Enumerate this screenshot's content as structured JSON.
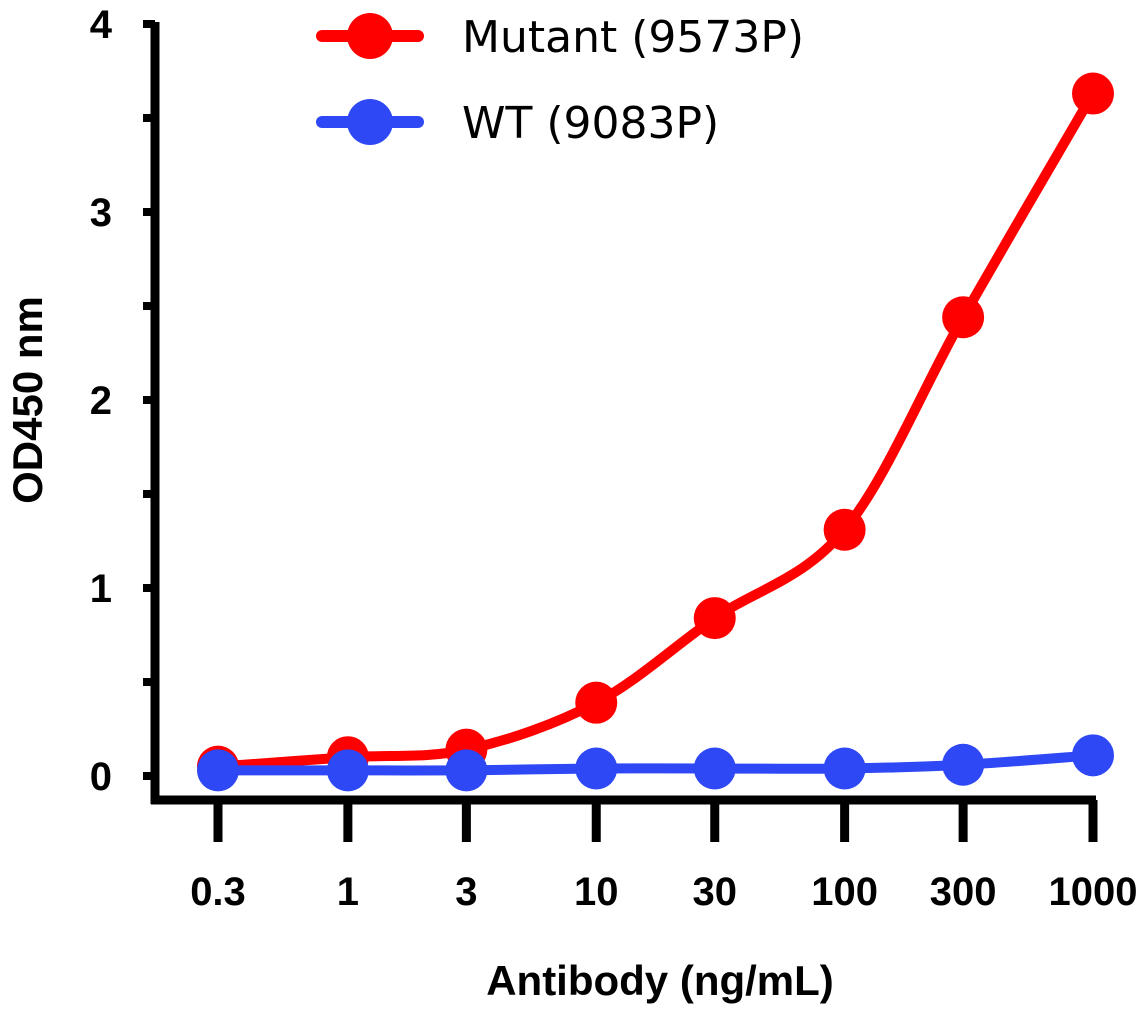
{
  "chart_data": {
    "type": "line",
    "xlabel": "Antibody (ng/mL)",
    "ylabel": "OD450 nm",
    "x_scale": "log",
    "x": [
      0.3,
      1,
      3,
      10,
      30,
      100,
      300,
      1000
    ],
    "x_tick_labels": [
      "0.3",
      "1",
      "3",
      "10",
      "30",
      "100",
      "300",
      "1000"
    ],
    "y_ticks": [
      0,
      1,
      2,
      3,
      4
    ],
    "y_tick_labels": [
      "0",
      "1",
      "2",
      "3",
      "4"
    ],
    "ylim": [
      0,
      4
    ],
    "grid": false,
    "legend_position": "top",
    "series": [
      {
        "name": "Mutant (9573P)",
        "color": "#ff0000",
        "values": [
          0.05,
          0.1,
          0.14,
          0.39,
          0.84,
          1.31,
          2.44,
          3.63
        ]
      },
      {
        "name": "WT (9083P)",
        "color": "#2e48f5",
        "values": [
          0.03,
          0.03,
          0.03,
          0.04,
          0.04,
          0.04,
          0.06,
          0.11
        ]
      }
    ]
  }
}
